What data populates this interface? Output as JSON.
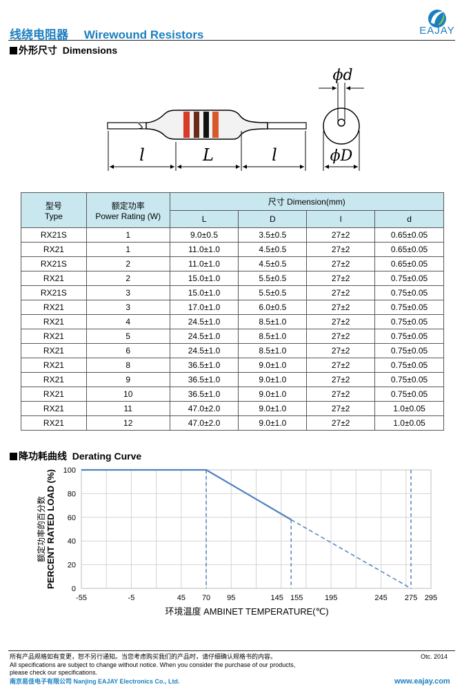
{
  "header": {
    "title_cn": "线绕电阻器",
    "title_en": "Wirewound Resistors",
    "logo_text": "EAJAY"
  },
  "dimensions_section": {
    "heading_cn": "外形尺寸",
    "heading_en": "Dimensions",
    "drawing_labels": [
      "l",
      "L",
      "l",
      "ϕd",
      "ϕD"
    ]
  },
  "table": {
    "header": {
      "type_cn": "型号",
      "type_en": "Type",
      "power_cn": "额定功率",
      "power_en": "Power Rating (W)",
      "dimension": "尺寸 Dimension(mm)",
      "cols": [
        "L",
        "D",
        "l",
        "d"
      ]
    },
    "rows": [
      [
        "RX21S",
        "1",
        "9.0±0.5",
        "3.5±0.5",
        "27±2",
        "0.65±0.05"
      ],
      [
        "RX21",
        "1",
        "11.0±1.0",
        "4.5±0.5",
        "27±2",
        "0.65±0.05"
      ],
      [
        "RX21S",
        "2",
        "11.0±1.0",
        "4.5±0.5",
        "27±2",
        "0.65±0.05"
      ],
      [
        "RX21",
        "2",
        "15.0±1.0",
        "5.5±0.5",
        "27±2",
        "0.75±0.05"
      ],
      [
        "RX21S",
        "3",
        "15.0±1.0",
        "5.5±0.5",
        "27±2",
        "0.75±0.05"
      ],
      [
        "RX21",
        "3",
        "17.0±1.0",
        "6.0±0.5",
        "27±2",
        "0.75±0.05"
      ],
      [
        "RX21",
        "4",
        "24.5±1.0",
        "8.5±1.0",
        "27±2",
        "0.75±0.05"
      ],
      [
        "RX21",
        "5",
        "24.5±1.0",
        "8.5±1.0",
        "27±2",
        "0.75±0.05"
      ],
      [
        "RX21",
        "6",
        "24.5±1.0",
        "8.5±1.0",
        "27±2",
        "0.75±0.05"
      ],
      [
        "RX21",
        "8",
        "36.5±1.0",
        "9.0±1.0",
        "27±2",
        "0.75±0.05"
      ],
      [
        "RX21",
        "9",
        "36.5±1.0",
        "9.0±1.0",
        "27±2",
        "0.75±0.05"
      ],
      [
        "RX21",
        "10",
        "36.5±1.0",
        "9.0±1.0",
        "27±2",
        "0.75±0.05"
      ],
      [
        "RX21",
        "11",
        "47.0±2.0",
        "9.0±1.0",
        "27±2",
        "1.0±0.05"
      ],
      [
        "RX21",
        "12",
        "47.0±2.0",
        "9.0±1.0",
        "27±2",
        "1.0±0.05"
      ]
    ]
  },
  "derating_section": {
    "heading_cn": "降功耗曲线",
    "heading_en": "Derating Curve"
  },
  "chart_data": {
    "type": "line",
    "ylabel_cn": "额定功率的百分数",
    "ylabel_en": "PERCENT RATED LOAD",
    "ylabel_unit": "(%)",
    "xlabel_cn": "环境温度",
    "xlabel_en": "AMBINET TEMPERATURE(℃)",
    "x_ticks": [
      -55,
      -5,
      45,
      70,
      95,
      145,
      155,
      195,
      245,
      275,
      295
    ],
    "x_tick_labels": [
      "-55",
      "-5",
      "45",
      "70",
      "95",
      "145",
      "155",
      "195",
      "245",
      "275",
      "295"
    ],
    "y_ticks": [
      0,
      20,
      40,
      60,
      80,
      100
    ],
    "xlim": [
      -55,
      295
    ],
    "ylim": [
      0,
      100
    ],
    "grid": true,
    "series": [
      {
        "style": "solid",
        "x": [
          -55,
          70,
          155
        ],
        "y": [
          100,
          100,
          58
        ]
      },
      {
        "style": "dashed",
        "x": [
          155,
          275
        ],
        "y": [
          58,
          0
        ]
      }
    ],
    "dashed_verticals": [
      70,
      155,
      275
    ],
    "color": "#4f81bd"
  },
  "footer": {
    "notice_cn": "所有产品规格如有变更，恕不另行通知。当您考虑购买我们的产品时，请仔细确认规格书的内容。",
    "notice_en1": "All specifications are subject to change without notice. When you consider the purchase of our products,",
    "notice_en2": "please check our specifications.",
    "company": "南京易佳电子有限公司  Nanjing EAJAY Electronics Co., Ltd.",
    "date": "Otc. 2014",
    "website": "www.eajay.com"
  }
}
